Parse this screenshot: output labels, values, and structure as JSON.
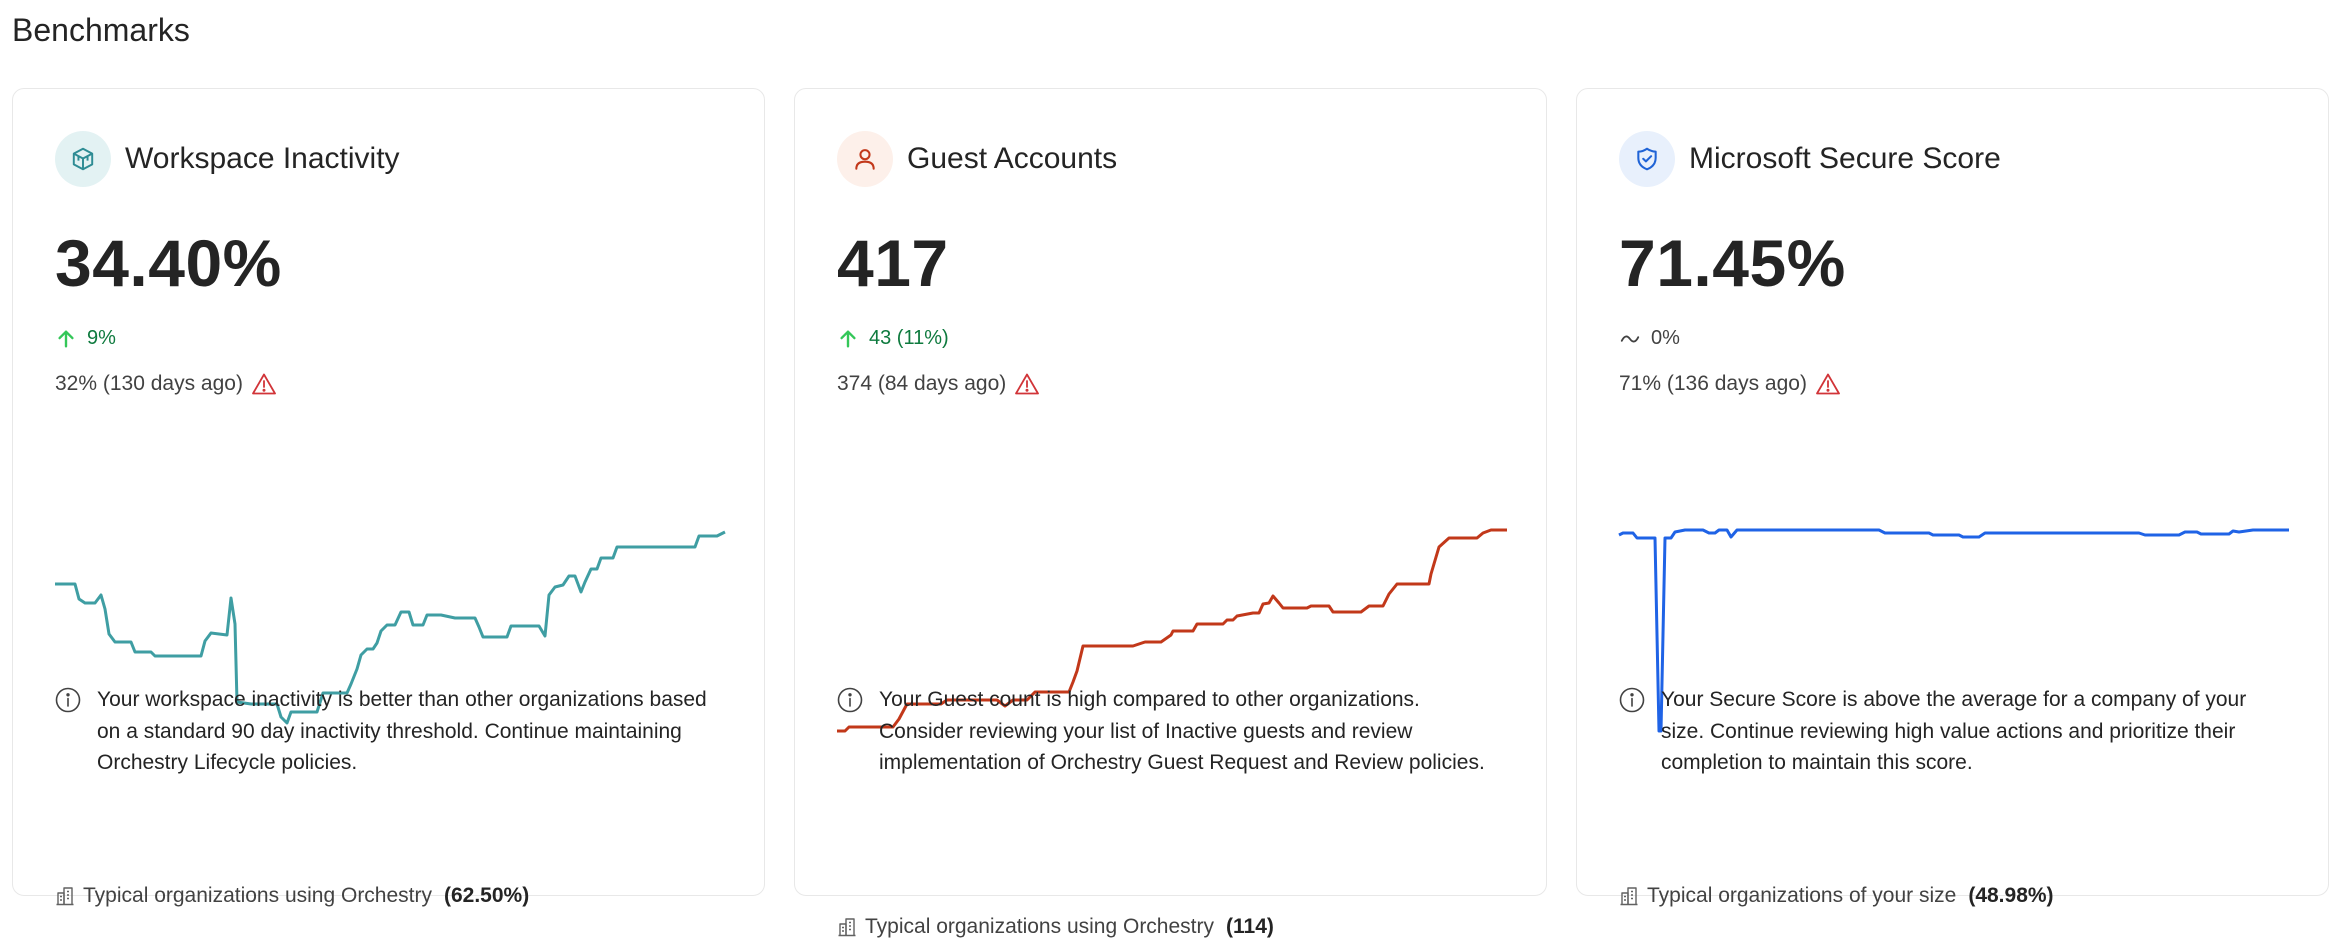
{
  "page": {
    "title": "Benchmarks"
  },
  "cards": [
    {
      "id": "workspace-inactivity",
      "icon": "cube-icon",
      "icon_color": "#2e8c94",
      "icon_bg": "#e3f2f3",
      "title": "Workspace Inactivity",
      "value": "34.40%",
      "change_direction": "up",
      "change_text": "9%",
      "past_text": "32% (130 days ago)",
      "line_color": "#3f9ea3",
      "insight": "Your workspace inactivity is better than other organizations based on a standard 90 day inactivity threshold. Continue maintaining Orchestry Lifecycle policies.",
      "typical_label": "Typical organizations using Orchestry",
      "typical_value": "(62.50%)"
    },
    {
      "id": "guest-accounts",
      "icon": "person-icon",
      "icon_color": "#c2381a",
      "icon_bg": "#fdf0ea",
      "title": "Guest Accounts",
      "value": "417",
      "change_direction": "up",
      "change_text": "43 (11%)",
      "past_text": "374 (84 days ago)",
      "line_color": "#c2381a",
      "insight": "Your Guest count is high compared to other organizations. Consider reviewing your list of Inactive guests and review implementation of Orchestry Guest Request and Review policies.",
      "typical_label": "Typical organizations using Orchestry",
      "typical_value": "(114)"
    },
    {
      "id": "microsoft-secure-score",
      "icon": "shield-check-icon",
      "icon_color": "#1f63d6",
      "icon_bg": "#e8f0fc",
      "title": "Microsoft Secure Score",
      "value": "71.45%",
      "change_direction": "flat",
      "change_text": "0%",
      "past_text": "71% (136 days ago)",
      "line_color": "#1f63e6",
      "insight": "Your Secure Score is above the average for a company of your size. Continue reviewing high value actions and prioritize their completion to maintain this score.",
      "typical_label": "Typical organizations of your size",
      "typical_value": "(48.98%)"
    }
  ],
  "icons": {
    "info": "info-icon",
    "warning": "warning-icon",
    "building": "building-icon",
    "trend_up": "arrow-up-icon",
    "trend_flat": "tilde-icon"
  },
  "colors": {
    "up": "#0e7a3e",
    "up_arrow": "#34c759",
    "warning": "#d13438"
  }
}
